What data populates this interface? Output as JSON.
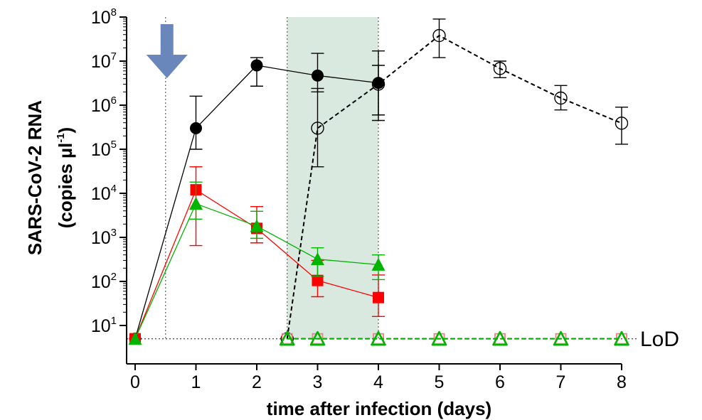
{
  "chart_data": {
    "type": "line",
    "title": "",
    "xlabel": "time after infection (days)",
    "ylabel": "SARS-CoV-2 RNA",
    "ylabel_unit_prefix": "(copies µl",
    "ylabel_unit_exponent": "-1",
    "ylabel_unit_suffix": ")",
    "x_ticks": [
      "0",
      "1",
      "2",
      "3",
      "4",
      "5",
      "6",
      "7",
      "8"
    ],
    "y_tick_base": "10",
    "y_tick_exponents": [
      "1",
      "2",
      "3",
      "4",
      "5",
      "6",
      "7",
      "8"
    ],
    "xlim": [
      0,
      8
    ],
    "ylim_log10": [
      0.7,
      8
    ],
    "y_scale": "log",
    "grid": false,
    "lod_label": "LoD",
    "lod_value": 5,
    "arrow_at_day": 0.5,
    "shaded_region_days": [
      2.5,
      4
    ],
    "vertical_dotted_lines_days": [
      0.5,
      2.5,
      4
    ],
    "colors": {
      "black": "#000000",
      "red": "#ff0000",
      "green": "#00b400",
      "arrow": "#6a87bb",
      "shade": "#d9e9df",
      "lod_line": "#555555"
    },
    "series": [
      {
        "color": "black",
        "marker": "circle",
        "filled": true,
        "dashed": false,
        "points": [
          {
            "x": 0,
            "y": 5,
            "lo": 5,
            "hi": 5
          },
          {
            "x": 1,
            "y": 300000,
            "lo": 100000,
            "hi": 1600000
          },
          {
            "x": 2,
            "y": 8000000,
            "lo": 2700000,
            "hi": 12000000
          },
          {
            "x": 3,
            "y": 4700000,
            "lo": 2000000,
            "hi": 15000000
          },
          {
            "x": 4,
            "y": 3200000,
            "lo": 450000,
            "hi": 17000000
          }
        ]
      },
      {
        "color": "red",
        "marker": "square",
        "filled": true,
        "dashed": false,
        "points": [
          {
            "x": 0,
            "y": 5,
            "lo": 5,
            "hi": 5
          },
          {
            "x": 1,
            "y": 12000,
            "lo": 650,
            "hi": 40000
          },
          {
            "x": 2,
            "y": 1600,
            "lo": 750,
            "hi": 5000
          },
          {
            "x": 3,
            "y": 105,
            "lo": 45,
            "hi": 300
          },
          {
            "x": 4,
            "y": 43,
            "lo": 16,
            "hi": 140
          }
        ]
      },
      {
        "color": "green",
        "marker": "triangle",
        "filled": true,
        "dashed": false,
        "points": [
          {
            "x": 0,
            "y": 5,
            "lo": 5,
            "hi": 5
          },
          {
            "x": 1,
            "y": 5800,
            "lo": 2600,
            "hi": 18000
          },
          {
            "x": 2,
            "y": 1800,
            "lo": 950,
            "hi": 3900
          },
          {
            "x": 3,
            "y": 320,
            "lo": 130,
            "hi": 580
          },
          {
            "x": 4,
            "y": 240,
            "lo": 110,
            "hi": 400
          }
        ]
      },
      {
        "color": "black",
        "marker": "circle",
        "filled": false,
        "dashed": true,
        "points": [
          {
            "x": 2.5,
            "y": 5,
            "lo": 5,
            "hi": 5
          },
          {
            "x": 3,
            "y": 300000,
            "lo": 40000,
            "hi": 2400000
          },
          {
            "x": 4,
            "y": 3000000,
            "lo": 600000,
            "hi": 8000000
          },
          {
            "x": 5,
            "y": 38000000,
            "lo": 12000000,
            "hi": 90000000
          },
          {
            "x": 6,
            "y": 6800000,
            "lo": 4200000,
            "hi": 10000000
          },
          {
            "x": 7,
            "y": 1450000,
            "lo": 780000,
            "hi": 2800000
          },
          {
            "x": 8,
            "y": 390000,
            "lo": 130000,
            "hi": 900000
          }
        ]
      },
      {
        "color": "red",
        "marker": "square",
        "filled": false,
        "dashed": true,
        "points": [
          {
            "x": 2.5,
            "y": 5
          },
          {
            "x": 3,
            "y": 5
          },
          {
            "x": 4,
            "y": 5
          },
          {
            "x": 5,
            "y": 5
          },
          {
            "x": 6,
            "y": 5
          },
          {
            "x": 7,
            "y": 5
          },
          {
            "x": 8,
            "y": 5
          }
        ]
      },
      {
        "color": "green",
        "marker": "triangle",
        "filled": false,
        "dashed": true,
        "points": [
          {
            "x": 2.5,
            "y": 5
          },
          {
            "x": 3,
            "y": 5
          },
          {
            "x": 4,
            "y": 5
          },
          {
            "x": 5,
            "y": 5
          },
          {
            "x": 6,
            "y": 5
          },
          {
            "x": 7,
            "y": 5
          },
          {
            "x": 8,
            "y": 5
          }
        ]
      }
    ]
  }
}
